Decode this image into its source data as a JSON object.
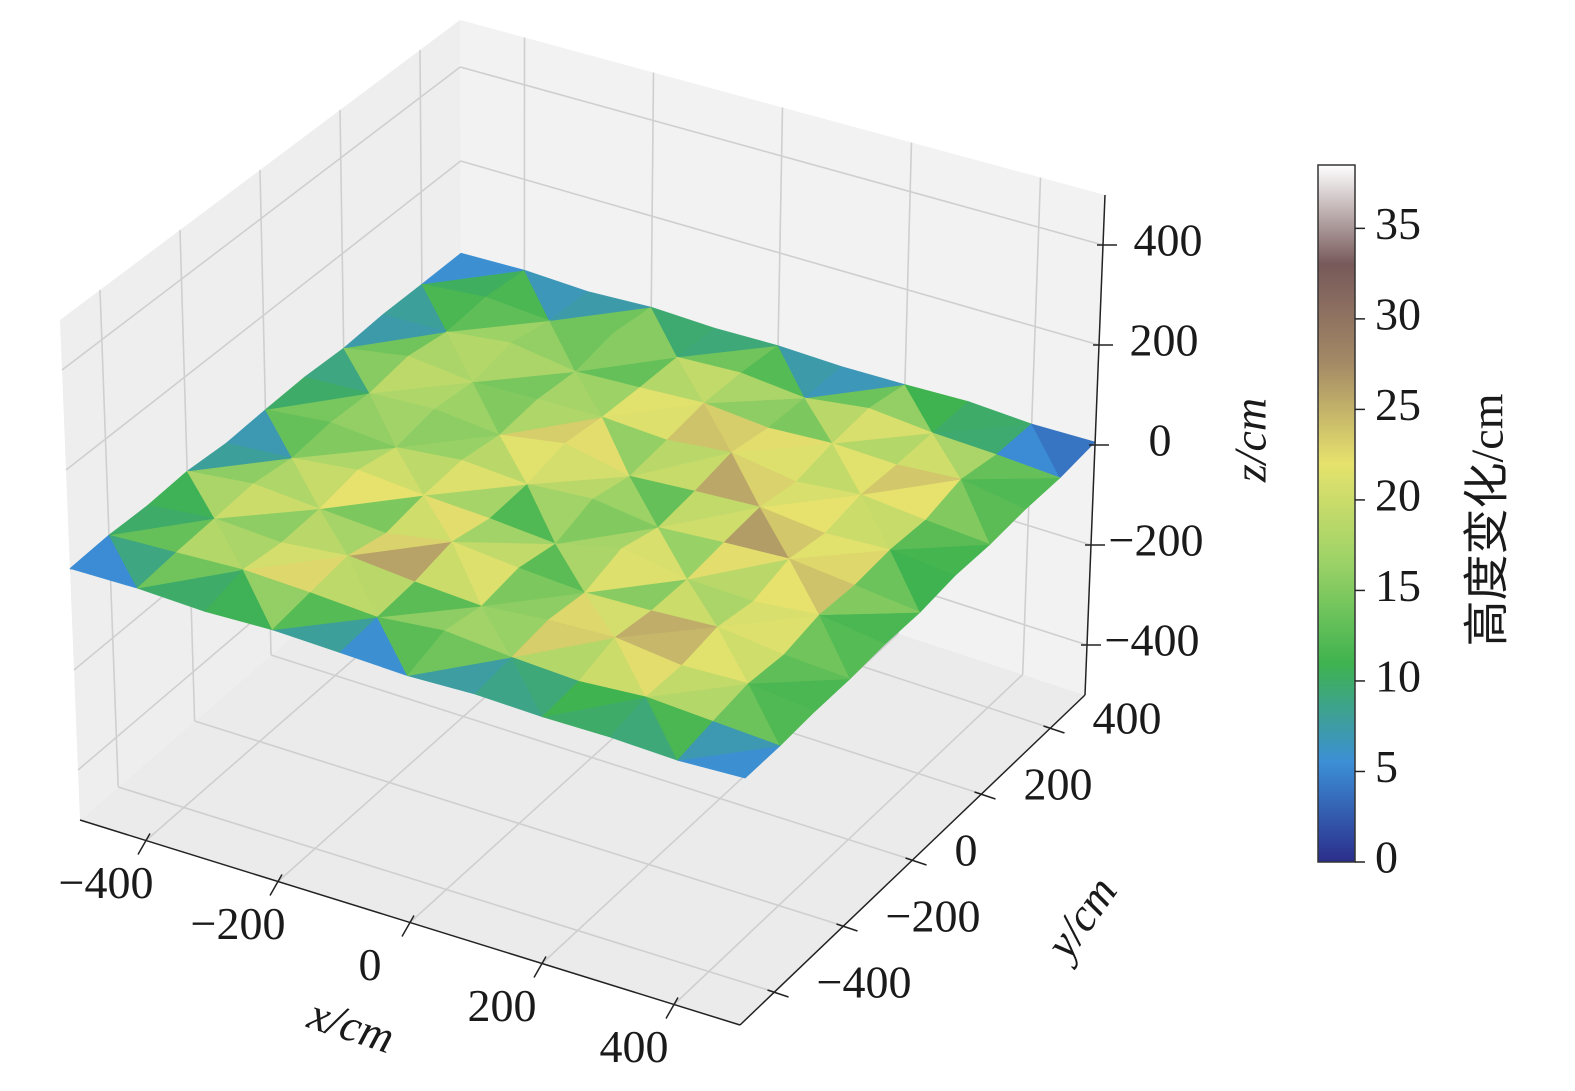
{
  "chart_data": {
    "type": "surface3d",
    "x": [
      -500,
      -400,
      -300,
      -200,
      -100,
      0,
      100,
      200,
      300,
      400,
      500
    ],
    "y": [
      -500,
      -400,
      -300,
      -200,
      -100,
      0,
      100,
      200,
      300,
      400,
      500
    ],
    "z": [
      [
        3,
        6,
        2,
        8,
        5,
        1,
        7,
        4,
        6,
        2,
        9
      ],
      [
        7,
        14,
        22,
        18,
        11,
        26,
        15,
        9,
        20,
        13,
        6
      ],
      [
        4,
        19,
        12,
        28,
        17,
        10,
        24,
        31,
        16,
        22,
        8
      ],
      [
        9,
        25,
        16,
        8,
        33,
        21,
        13,
        18,
        27,
        12,
        5
      ],
      [
        2,
        13,
        30,
        20,
        14,
        4,
        36,
        15,
        11,
        25,
        7
      ],
      [
        6,
        21,
        11,
        26,
        18,
        29,
        12,
        22,
        30,
        17,
        3
      ],
      [
        8,
        16,
        24,
        12,
        35,
        9,
        19,
        27,
        14,
        21,
        9
      ],
      [
        3,
        27,
        14,
        19,
        23,
        16,
        31,
        11,
        25,
        13,
        4
      ],
      [
        7,
        12,
        29,
        10,
        17,
        25,
        14,
        22,
        18,
        28,
        6
      ],
      [
        5,
        18,
        9,
        23,
        13,
        20,
        8,
        26,
        15,
        10,
        2
      ],
      [
        4,
        8,
        3,
        10,
        6,
        9,
        5,
        7,
        11,
        4,
        6
      ]
    ],
    "xlim": [
      -500,
      500
    ],
    "ylim": [
      -500,
      500
    ],
    "zlim": [
      -500,
      500
    ],
    "xticks": [
      {
        "value": -400,
        "label": "−400"
      },
      {
        "value": -200,
        "label": "−200"
      },
      0,
      200,
      400
    ],
    "yticks": [
      {
        "value": -400,
        "label": "−400"
      },
      {
        "value": -200,
        "label": "−200"
      },
      0,
      200,
      400
    ],
    "zticks": [
      {
        "value": -400,
        "label": "−400"
      },
      {
        "value": -200,
        "label": "−200"
      },
      0,
      200,
      400
    ],
    "xlabel": "x/cm",
    "ylabel": "y/cm",
    "zlabel": "z/cm",
    "grid": true,
    "colormap": [
      "#2b2e8b",
      "#3c8fd6",
      "#3fb34f",
      "#9bd267",
      "#e6e26d",
      "#a58a66",
      "#77595a",
      "#ffffff"
    ],
    "colorbar": {
      "label": "高度变化/cm",
      "lim": [
        0,
        38.5
      ],
      "ticks": [
        0,
        5,
        10,
        15,
        20,
        25,
        30,
        35
      ]
    }
  }
}
